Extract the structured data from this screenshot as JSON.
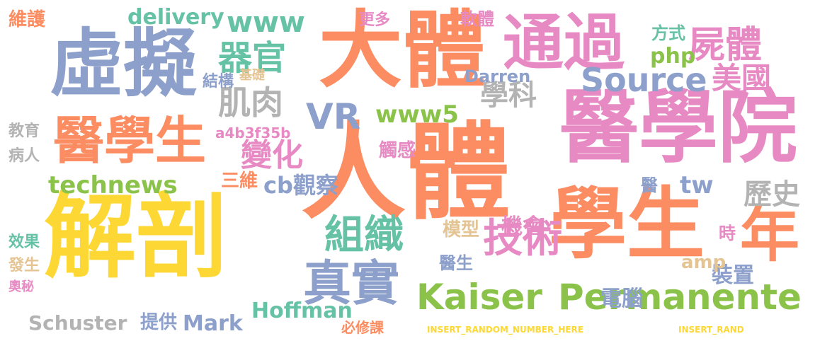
{
  "palette": {
    "yellow": "#fdd835",
    "orange": "#fc8d62",
    "blue": "#8da0cb",
    "pink": "#e78ac3",
    "green": "#8bc34a",
    "teal": "#66c2a5",
    "tan": "#e5c494",
    "gray": "#b3b3b3"
  },
  "words": [
    "解剖",
    "人體",
    "醫學院",
    "大體",
    "學生",
    "虛擬",
    "通過",
    "醫學生",
    "Permanente",
    "Kaiser",
    "真實",
    "年",
    "組織",
    "技術",
    "Source",
    "VR",
    "屍體",
    "器官",
    "肌肉",
    "美國",
    "變化",
    "www",
    "www5",
    "technews",
    "Schuster",
    "Hoffman",
    "Mark",
    "學科",
    "歷史",
    "tw",
    "php",
    "delivery",
    "Darren",
    "cb觀察",
    "三維",
    "模型",
    "機會",
    "電腦",
    "裝置",
    "amp",
    "醫生",
    "提供",
    "結構",
    "觸感",
    "a4b3f35b",
    "更多",
    "方式",
    "軟體",
    "維護",
    "教育",
    "病人",
    "效果",
    "發生",
    "奧秘",
    "必修課",
    "基礎",
    "時",
    "醫",
    "INSERT_RANDOM_NUMBER_HERE",
    "INSERT_RAND"
  ]
}
